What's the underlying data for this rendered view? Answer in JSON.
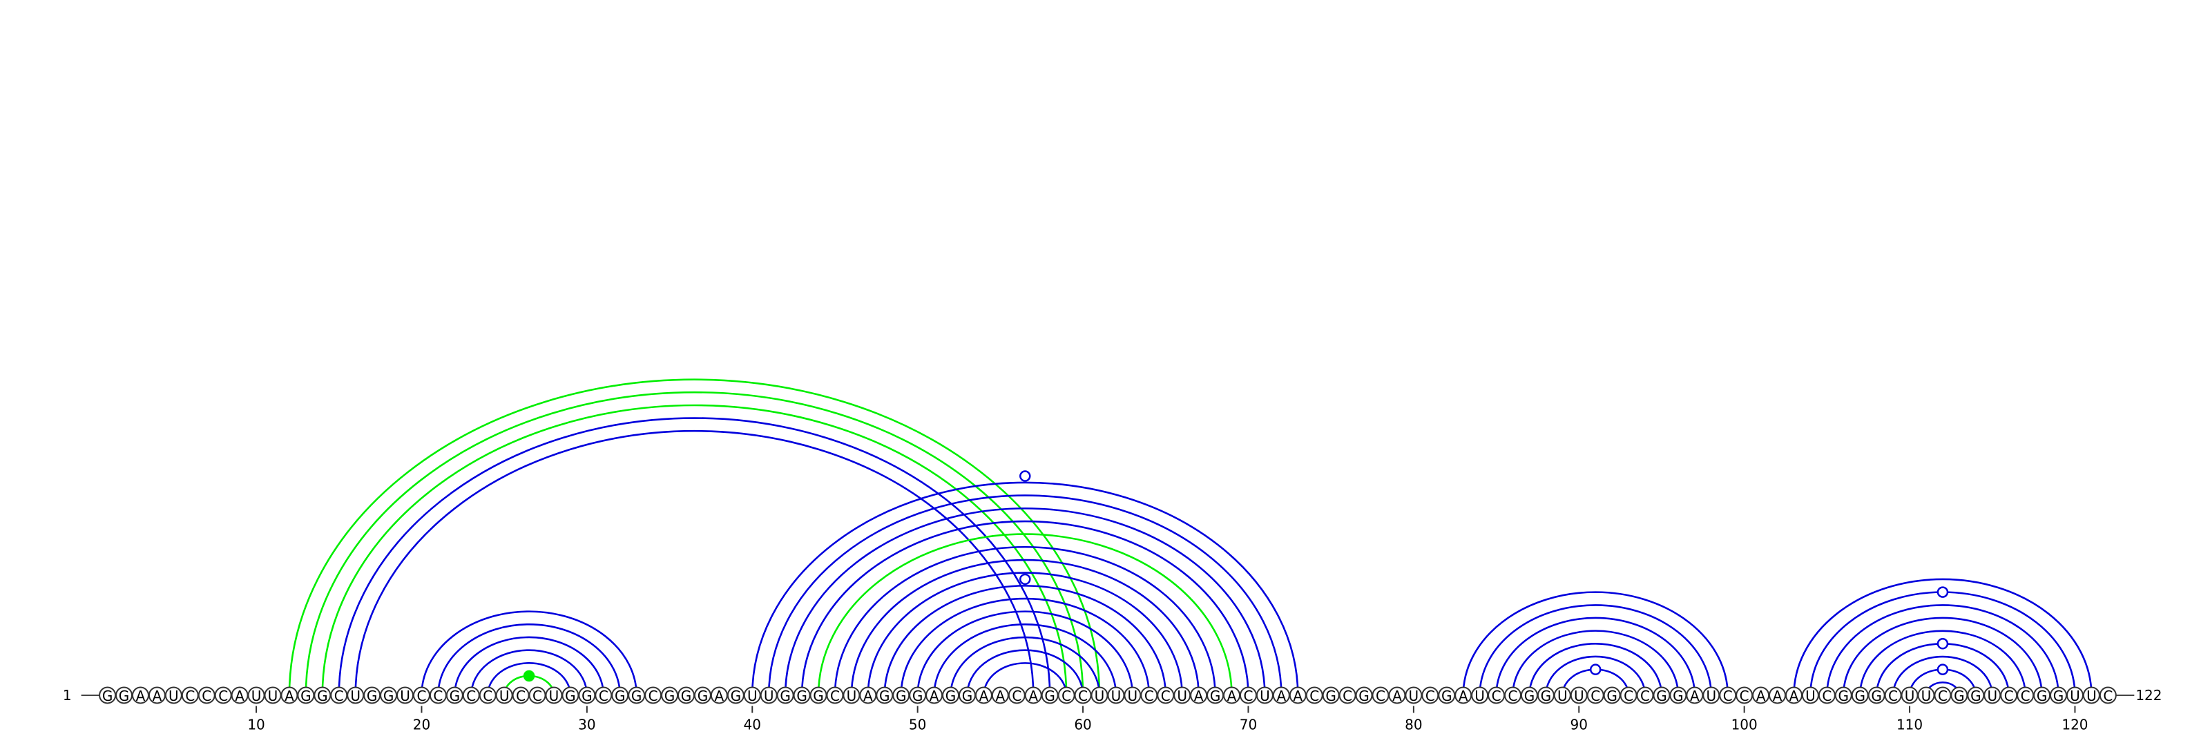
{
  "diagram": {
    "type": "rna-arc-diagram",
    "sequence": "GGAAUCCCAUUAGGCUGGUCCGCCUCCUGGCGGCGGGAGUUGGGCUAGGGAGGAACAGCCUUUCCUAGACUAACGCGCAUCGAUCCGGUUCGCCGGAUCCAAAUCGGGCUUCGGUCCGGUUC",
    "start_label": "1",
    "end_label": "122",
    "ticks": [
      10,
      20,
      30,
      40,
      50,
      60,
      70,
      80,
      90,
      100,
      110,
      120
    ],
    "colors": {
      "blue": "#0000dd",
      "green": "#00ee00",
      "backbone": "#444444"
    },
    "arcs": [
      {
        "i": 12,
        "j": 61,
        "color": "green"
      },
      {
        "i": 13,
        "j": 60,
        "color": "green"
      },
      {
        "i": 14,
        "j": 59,
        "color": "green"
      },
      {
        "i": 15,
        "j": 58,
        "color": "blue"
      },
      {
        "i": 16,
        "j": 57,
        "color": "blue"
      },
      {
        "i": 20,
        "j": 33,
        "color": "blue"
      },
      {
        "i": 21,
        "j": 32,
        "color": "blue"
      },
      {
        "i": 22,
        "j": 31,
        "color": "blue"
      },
      {
        "i": 23,
        "j": 30,
        "color": "blue"
      },
      {
        "i": 24,
        "j": 29,
        "color": "blue"
      },
      {
        "i": 25,
        "j": 28,
        "color": "green"
      },
      {
        "i": 40,
        "j": 73,
        "color": "blue"
      },
      {
        "i": 41,
        "j": 72,
        "color": "blue"
      },
      {
        "i": 42,
        "j": 71,
        "color": "blue"
      },
      {
        "i": 43,
        "j": 70,
        "color": "blue"
      },
      {
        "i": 44,
        "j": 69,
        "color": "green"
      },
      {
        "i": 45,
        "j": 68,
        "color": "blue"
      },
      {
        "i": 46,
        "j": 67,
        "color": "blue"
      },
      {
        "i": 47,
        "j": 66,
        "color": "blue"
      },
      {
        "i": 48,
        "j": 65,
        "color": "blue"
      },
      {
        "i": 49,
        "j": 64,
        "color": "blue"
      },
      {
        "i": 50,
        "j": 63,
        "color": "blue"
      },
      {
        "i": 51,
        "j": 62,
        "color": "blue"
      },
      {
        "i": 52,
        "j": 61,
        "color": "blue"
      },
      {
        "i": 53,
        "j": 60,
        "color": "blue"
      },
      {
        "i": 54,
        "j": 59,
        "color": "blue"
      },
      {
        "i": 83,
        "j": 99,
        "color": "blue"
      },
      {
        "i": 84,
        "j": 98,
        "color": "blue"
      },
      {
        "i": 85,
        "j": 97,
        "color": "blue"
      },
      {
        "i": 86,
        "j": 96,
        "color": "blue"
      },
      {
        "i": 87,
        "j": 95,
        "color": "blue"
      },
      {
        "i": 88,
        "j": 94,
        "color": "blue"
      },
      {
        "i": 89,
        "j": 93,
        "color": "blue"
      },
      {
        "i": 103,
        "j": 121,
        "color": "blue"
      },
      {
        "i": 104,
        "j": 120,
        "color": "blue"
      },
      {
        "i": 105,
        "j": 119,
        "color": "blue"
      },
      {
        "i": 106,
        "j": 118,
        "color": "blue"
      },
      {
        "i": 107,
        "j": 117,
        "color": "blue"
      },
      {
        "i": 108,
        "j": 116,
        "color": "blue"
      },
      {
        "i": 109,
        "j": 115,
        "color": "blue"
      },
      {
        "i": 110,
        "j": 114,
        "color": "blue"
      },
      {
        "i": 111,
        "j": 113,
        "color": "blue"
      }
    ],
    "markers": [
      {
        "pos": 56.5,
        "arc_span": 34,
        "filled": false,
        "color": "blue"
      },
      {
        "pos": 56.5,
        "arc_span": 18,
        "filled": false,
        "color": "blue"
      },
      {
        "pos": 26.5,
        "arc_span": 3,
        "filled": true,
        "color": "green"
      },
      {
        "pos": 91,
        "arc_span": 4,
        "filled": false,
        "color": "blue"
      },
      {
        "pos": 112,
        "arc_span": 16,
        "filled": false,
        "color": "blue"
      },
      {
        "pos": 112,
        "arc_span": 8,
        "filled": false,
        "color": "blue"
      },
      {
        "pos": 112,
        "arc_span": 4,
        "filled": false,
        "color": "blue"
      }
    ]
  }
}
